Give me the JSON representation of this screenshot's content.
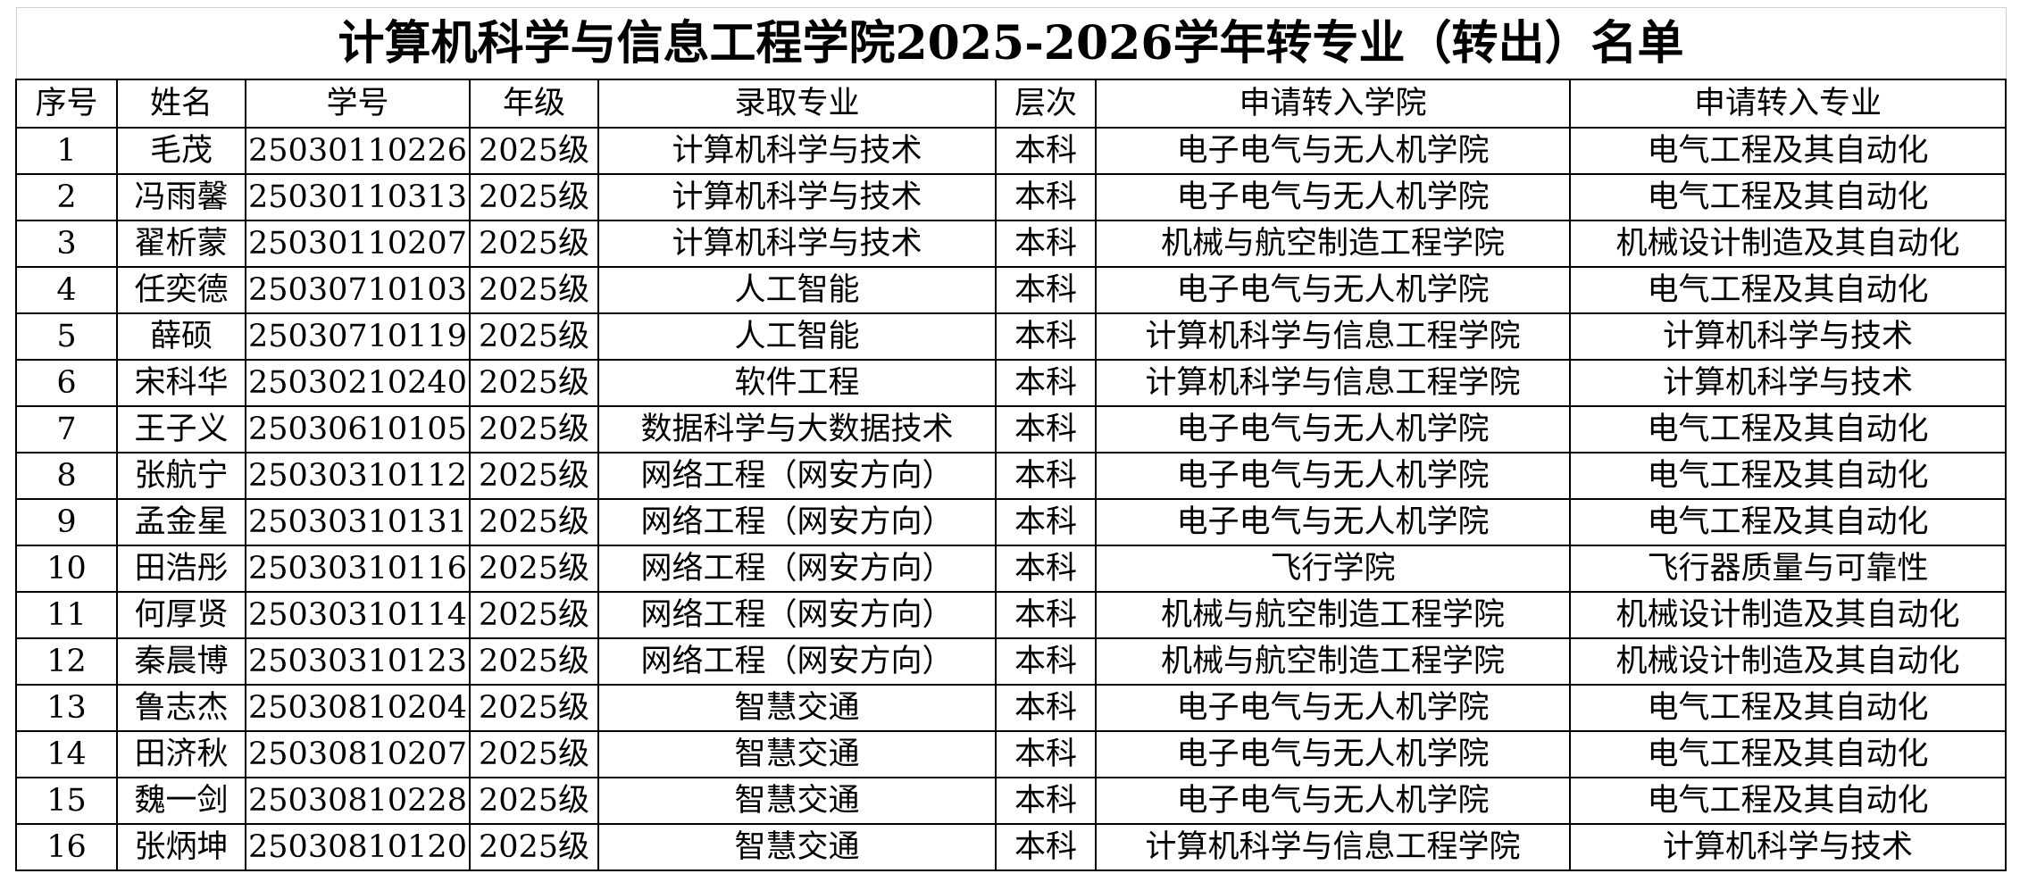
{
  "title": "计算机科学与信息工程学院2025-2026学年转专业（转出）名单",
  "table": {
    "header": [
      "序号",
      "姓名",
      "学号",
      "年级",
      "录取专业",
      "层次",
      "申请转入学院",
      "申请转入专业"
    ],
    "rows": [
      [
        "1",
        "毛茂",
        "25030110226",
        "2025级",
        "计算机科学与技术",
        "本科",
        "电子电气与无人机学院",
        "电气工程及其自动化"
      ],
      [
        "2",
        "冯雨馨",
        "25030110313",
        "2025级",
        "计算机科学与技术",
        "本科",
        "电子电气与无人机学院",
        "电气工程及其自动化"
      ],
      [
        "3",
        "翟析蒙",
        "25030110207",
        "2025级",
        "计算机科学与技术",
        "本科",
        "机械与航空制造工程学院",
        "机械设计制造及其自动化"
      ],
      [
        "4",
        "任奕德",
        "25030710103",
        "2025级",
        "人工智能",
        "本科",
        "电子电气与无人机学院",
        "电气工程及其自动化"
      ],
      [
        "5",
        "薛硕",
        "25030710119",
        "2025级",
        "人工智能",
        "本科",
        "计算机科学与信息工程学院",
        "计算机科学与技术"
      ],
      [
        "6",
        "宋科华",
        "25030210240",
        "2025级",
        "软件工程",
        "本科",
        "计算机科学与信息工程学院",
        "计算机科学与技术"
      ],
      [
        "7",
        "王子义",
        "25030610105",
        "2025级",
        "数据科学与大数据技术",
        "本科",
        "电子电气与无人机学院",
        "电气工程及其自动化"
      ],
      [
        "8",
        "张航宁",
        "25030310112",
        "2025级",
        "网络工程（网安方向）",
        "本科",
        "电子电气与无人机学院",
        "电气工程及其自动化"
      ],
      [
        "9",
        "孟金星",
        "25030310131",
        "2025级",
        "网络工程（网安方向）",
        "本科",
        "电子电气与无人机学院",
        "电气工程及其自动化"
      ],
      [
        "10",
        "田浩彤",
        "25030310116",
        "2025级",
        "网络工程（网安方向）",
        "本科",
        "飞行学院",
        "飞行器质量与可靠性"
      ],
      [
        "11",
        "何厚贤",
        "25030310114",
        "2025级",
        "网络工程（网安方向）",
        "本科",
        "机械与航空制造工程学院",
        "机械设计制造及其自动化"
      ],
      [
        "12",
        "秦晨博",
        "25030310123",
        "2025级",
        "网络工程（网安方向）",
        "本科",
        "机械与航空制造工程学院",
        "机械设计制造及其自动化"
      ],
      [
        "13",
        "鲁志杰",
        "25030810204",
        "2025级",
        "智慧交通",
        "本科",
        "电子电气与无人机学院",
        "电气工程及其自动化"
      ],
      [
        "14",
        "田济秋",
        "25030810207",
        "2025级",
        "智慧交通",
        "本科",
        "电子电气与无人机学院",
        "电气工程及其自动化"
      ],
      [
        "15",
        "魏一剑",
        "25030810228",
        "2025级",
        "智慧交通",
        "本科",
        "电子电气与无人机学院",
        "电气工程及其自动化"
      ],
      [
        "16",
        "张炳坤",
        "25030810120",
        "2025级",
        "智慧交通",
        "本科",
        "计算机科学与信息工程学院",
        "计算机科学与技术"
      ]
    ]
  }
}
